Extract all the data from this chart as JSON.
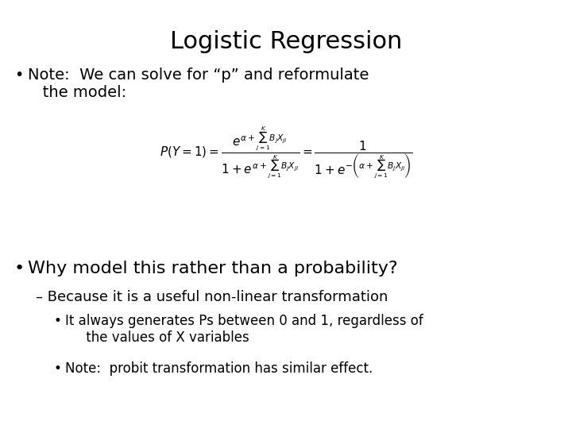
{
  "title": "Logistic Regression",
  "title_fontsize": 22,
  "bg_color": "#ffffff",
  "text_color": "#000000",
  "bullet1_text": "Note:  We can solve for “p” and reformulate\n   the model:",
  "bullet1_fontsize": 14,
  "formula_fontsize": 11,
  "bullet2_text": "Why model this rather than a probability?",
  "bullet2_fontsize": 16,
  "sub1_text": "– Because it is a useful non-linear transformation",
  "sub1_fontsize": 13,
  "sub2a_text": "It always generates Ps between 0 and 1, regardless of\n     the values of X variables",
  "sub2a_fontsize": 12,
  "sub2b_text": "Note:  probit transformation has similar effect.",
  "sub2b_fontsize": 12,
  "font_sans": "DejaVu Sans"
}
